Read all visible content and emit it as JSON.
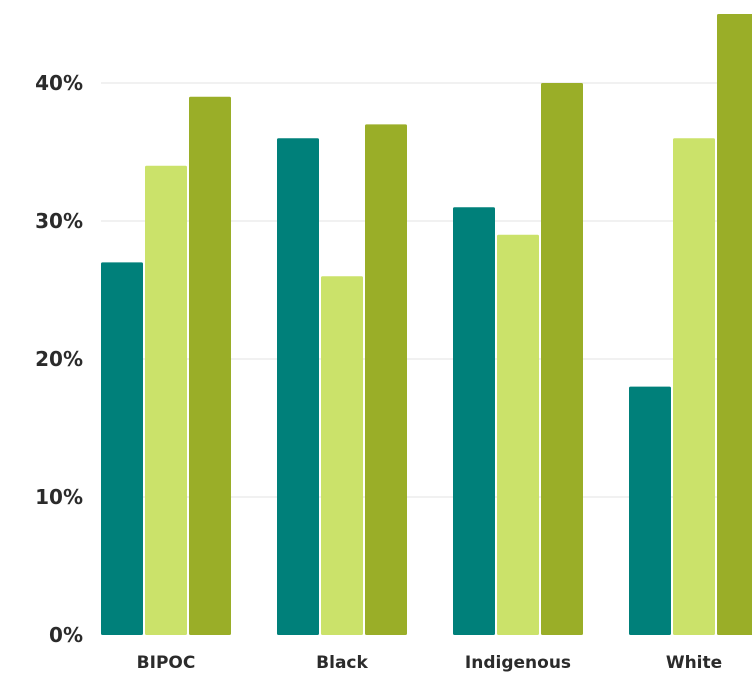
{
  "chart_data": {
    "type": "bar",
    "title": "",
    "xlabel": "",
    "ylabel": "",
    "categories": [
      "BIPOC",
      "Black",
      "Indigenous",
      "White"
    ],
    "series": [
      {
        "values": [
          27,
          36,
          31,
          18
        ],
        "color": "#00807a"
      },
      {
        "values": [
          34,
          26,
          29,
          36
        ],
        "color": "#cbe26a"
      },
      {
        "values": [
          39,
          37,
          40,
          45
        ],
        "color": "#9aae28"
      }
    ],
    "ylim": [
      0,
      45
    ],
    "yticks": [
      0,
      10,
      20,
      30,
      40
    ],
    "ytick_labels": [
      "0%",
      "10%",
      "20%",
      "30%",
      "40%"
    ],
    "grid": true,
    "legend": "none"
  }
}
